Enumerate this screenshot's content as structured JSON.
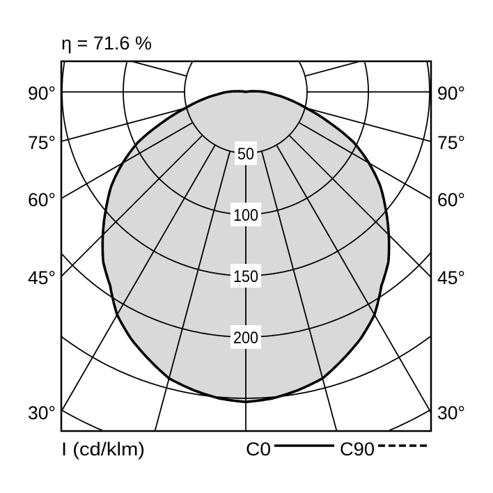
{
  "chart_data": {
    "type": "polar",
    "title": "η = 71.6 %",
    "unit_label": "I (cd/klm)",
    "ring_values": [
      50,
      100,
      150,
      200,
      250,
      300
    ],
    "ring_labels": [
      "50",
      "100",
      "150",
      "200"
    ],
    "angle_step_deg": 15,
    "angle_labels": [
      "90°",
      "75°",
      "60°",
      "45°",
      "30°"
    ],
    "angle_label_values": [
      90,
      75,
      60,
      45,
      30
    ],
    "fill_color": "#d9d9d9",
    "series": [
      {
        "name": "C0",
        "style": "solid"
      },
      {
        "name": "C90",
        "style": "dashed"
      }
    ],
    "angles_deg": [
      0,
      5,
      10,
      15,
      20,
      25,
      30,
      35,
      40,
      45,
      50,
      55,
      60,
      65,
      70,
      75,
      80,
      85,
      90,
      95,
      100,
      105,
      180
    ],
    "intensity": [
      253,
      251,
      247,
      242,
      232,
      222,
      210,
      193,
      181,
      165,
      149,
      134,
      116,
      97,
      72,
      51,
      36,
      23,
      15,
      6,
      2,
      0,
      0
    ]
  }
}
